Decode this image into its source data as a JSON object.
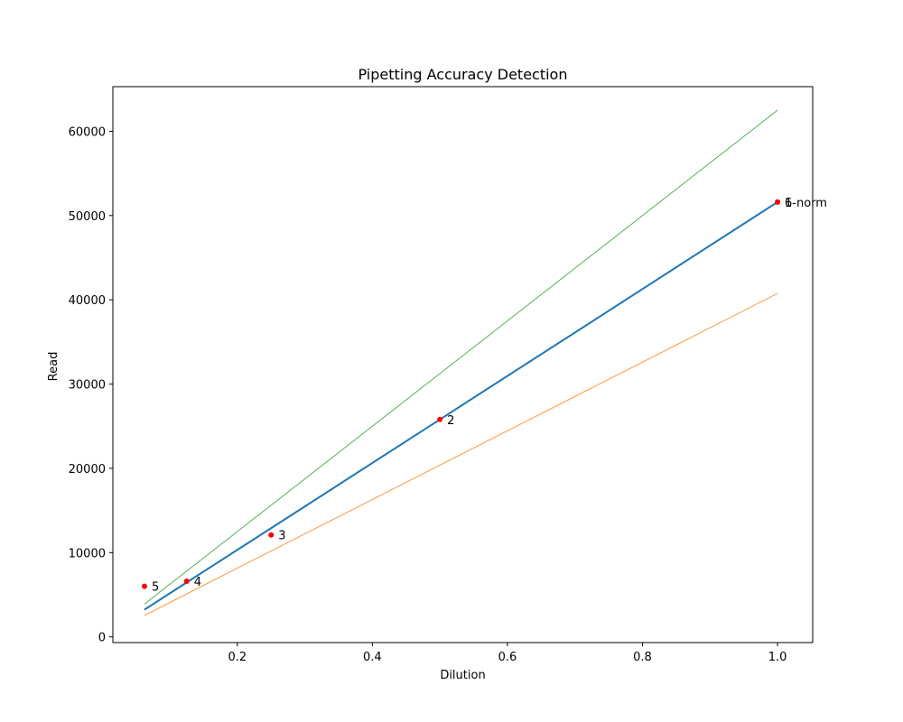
{
  "chart_data": {
    "type": "line",
    "title": "Pipetting Accuracy Detection",
    "xlabel": "Dilution",
    "ylabel": "Read",
    "xlim": [
      0.0157,
      1.0521
    ],
    "ylim": [
      -678,
      65298
    ],
    "x_ticks": [
      0.2,
      0.4,
      0.6,
      0.8,
      1.0
    ],
    "x_tick_labels": [
      "0.2",
      "0.4",
      "0.6",
      "0.8",
      "1.0"
    ],
    "y_ticks": [
      0,
      10000,
      20000,
      30000,
      40000,
      50000,
      60000
    ],
    "y_tick_labels": [
      "0",
      "10000",
      "20000",
      "30000",
      "40000",
      "50000",
      "60000"
    ],
    "grid": false,
    "series": [
      {
        "kind": "line",
        "color": "#2ca02c",
        "x": [
          0.0625,
          1.0
        ],
        "y": [
          3900,
          62500
        ]
      },
      {
        "kind": "line",
        "color": "#ff7f0e",
        "x": [
          0.0625,
          1.0
        ],
        "y": [
          2550,
          40750
        ]
      },
      {
        "kind": "line",
        "color": "#1f77b4",
        "x": [
          0.0625,
          0.125,
          0.25,
          0.5,
          1.0
        ],
        "y": [
          3230,
          6460,
          12900,
          25800,
          51600
        ]
      },
      {
        "kind": "scatter",
        "color": "#ff0000",
        "x": [
          1.0,
          0.5,
          0.25,
          0.125,
          0.0625,
          1.0
        ],
        "y": [
          51600,
          25800,
          12100,
          6600,
          6000,
          51600
        ]
      }
    ],
    "annotations": [
      {
        "text": "1",
        "x": 1.0,
        "y": 51600
      },
      {
        "text": "2",
        "x": 0.5,
        "y": 25800
      },
      {
        "text": "3",
        "x": 0.25,
        "y": 12100
      },
      {
        "text": "4",
        "x": 0.125,
        "y": 6600
      },
      {
        "text": "5",
        "x": 0.0625,
        "y": 6000
      },
      {
        "text": "6-norm",
        "x": 1.0,
        "y": 51600
      }
    ]
  }
}
